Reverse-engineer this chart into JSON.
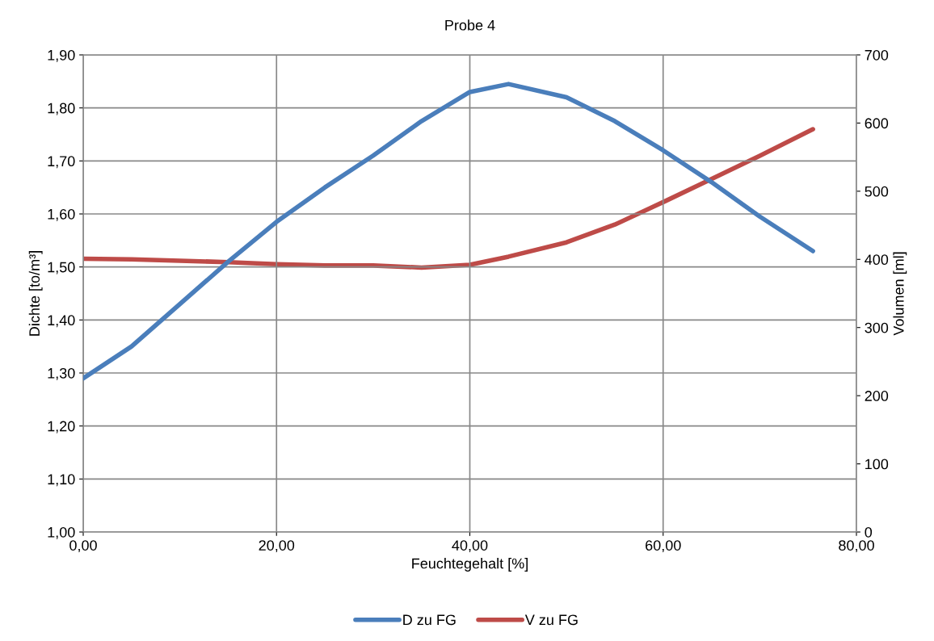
{
  "chart_data": {
    "type": "line",
    "title": "Probe 4",
    "xlabel": "Feuchtegehalt [%]",
    "ylabel": "Dichte [to/m³]",
    "y2label": "Volumen [ml]",
    "x": [
      0,
      5,
      10,
      15,
      20,
      25,
      30,
      35,
      40,
      44,
      50,
      55,
      60,
      65,
      70,
      75.5
    ],
    "series": [
      {
        "name": "D zu FG",
        "color": "#4a7ebb",
        "values": [
          1.29,
          1.35,
          1.43,
          1.51,
          1.585,
          1.65,
          1.71,
          1.775,
          1.83,
          1.845,
          1.82,
          1.775,
          1.72,
          1.66,
          1.595,
          1.53
        ]
      },
      {
        "name": "V zu FG",
        "color": "#be4b48",
        "axis": "y2",
        "values": [
          401,
          400,
          398,
          396,
          393,
          391,
          391,
          388,
          392,
          404,
          425,
          451,
          484,
          518,
          552,
          591
        ]
      }
    ],
    "xlim": [
      0,
      80
    ],
    "xticks": [
      {
        "value": 0,
        "label": "0,00"
      },
      {
        "value": 20,
        "label": "20,00"
      },
      {
        "value": 40,
        "label": "40,00"
      },
      {
        "value": 60,
        "label": "60,00"
      },
      {
        "value": 80,
        "label": "80,00"
      }
    ],
    "ylim": [
      1.0,
      1.9
    ],
    "yticks": [
      {
        "value": 1.0,
        "label": "1,00"
      },
      {
        "value": 1.1,
        "label": "1,10"
      },
      {
        "value": 1.2,
        "label": "1,20"
      },
      {
        "value": 1.3,
        "label": "1,30"
      },
      {
        "value": 1.4,
        "label": "1,40"
      },
      {
        "value": 1.5,
        "label": "1,50"
      },
      {
        "value": 1.6,
        "label": "1,60"
      },
      {
        "value": 1.7,
        "label": "1,70"
      },
      {
        "value": 1.8,
        "label": "1,80"
      },
      {
        "value": 1.9,
        "label": "1,90"
      }
    ],
    "y2lim": [
      0,
      700
    ],
    "y2ticks": [
      0,
      100,
      200,
      300,
      400,
      500,
      600,
      700
    ],
    "grid": true,
    "legend": "bottom",
    "marker": "none",
    "line_style": "solid"
  }
}
